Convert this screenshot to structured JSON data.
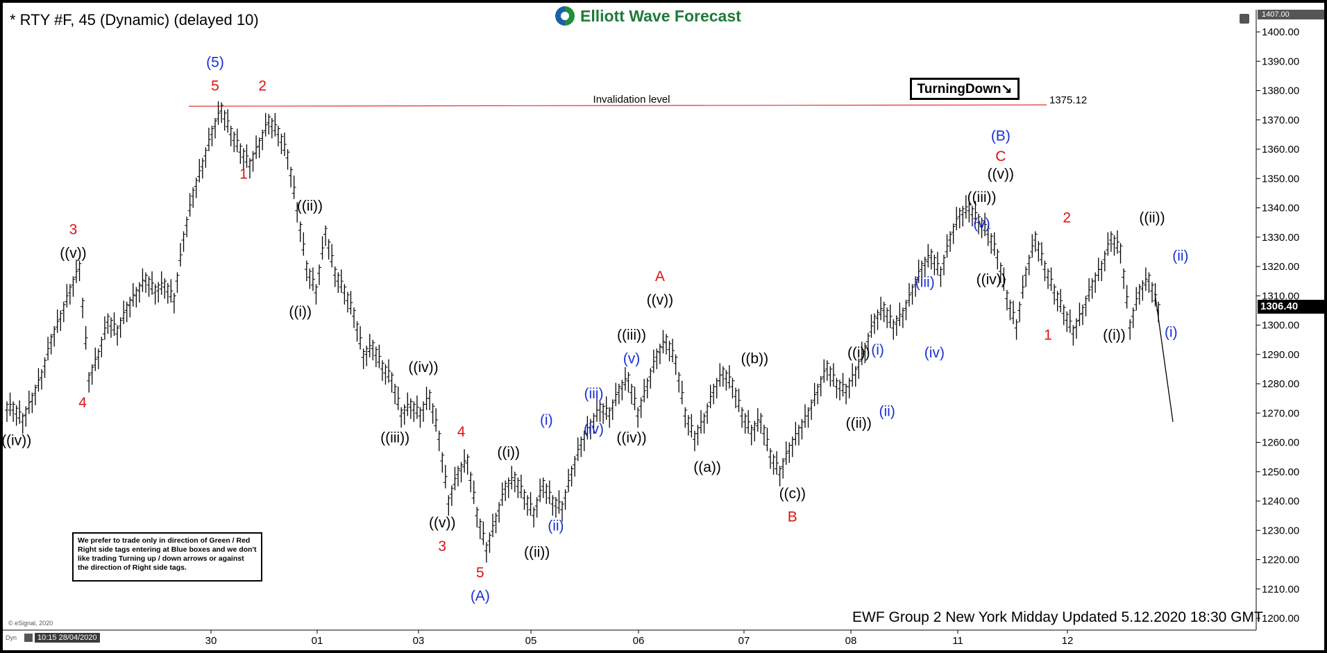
{
  "header": {
    "title": "* RTY #F, 45 (Dynamic) (delayed 10)",
    "logo_text": "Elliott Wave Forecast",
    "turning_label": "TurningDown↘",
    "note": "We prefer to trade only in direction of Green / Red Right side tags entering at Blue boxes and we don't like trading Turning up / down arrows or against the direction of Right side tags.",
    "updated": "EWF Group 2 New York Midday Updated 5.12.2020 18:30 GMT",
    "copyright": "© eSignal, 2020",
    "timestamp": "10:15 28/04/2020",
    "dyn": "Dyn",
    "price_tag": "1306.40",
    "top_tag": "1407.00"
  },
  "chart_data": {
    "type": "bar",
    "title": "* RTY #F, 45 (Dynamic) (delayed 10)",
    "ylim": [
      1196,
      1409
    ],
    "y_ticks": [
      "1400.00",
      "1390.00",
      "1380.00",
      "1370.00",
      "1360.00",
      "1350.00",
      "1340.00",
      "1330.00",
      "1320.00",
      "1310.00",
      "1300.00",
      "1290.00",
      "1280.00",
      "1270.00",
      "1260.00",
      "1250.00",
      "1240.00",
      "1230.00",
      "1220.00",
      "1210.00",
      "1200.00"
    ],
    "x_ticks": [
      "30",
      "01",
      "03",
      "05",
      "06",
      "07",
      "08",
      "11",
      "12"
    ],
    "invalidation": {
      "label": "Invalidation level",
      "value": 1375.12,
      "value_text": "1375.12",
      "color": "#e03030"
    },
    "colors": {
      "red": "#dd1111",
      "blue": "#1a2fd6",
      "black": "#000000"
    },
    "price_path": [
      {
        "t": "28/04 10:15",
        "v": 1272
      },
      {
        "t": "",
        "v": 1268
      },
      {
        "t": "",
        "v": 1275
      },
      {
        "t": "",
        "v": 1283
      },
      {
        "t": "",
        "v": 1295
      },
      {
        "t": "",
        "v": 1303
      },
      {
        "t": "",
        "v": 1312
      },
      {
        "t": "",
        "v": 1320
      },
      {
        "t": "",
        "v": 1282
      },
      {
        "t": "",
        "v": 1290
      },
      {
        "t": "",
        "v": 1302
      },
      {
        "t": "",
        "v": 1298
      },
      {
        "t": "",
        "v": 1306
      },
      {
        "t": "",
        "v": 1311
      },
      {
        "t": "",
        "v": 1316
      },
      {
        "t": "",
        "v": 1312
      },
      {
        "t": "",
        "v": 1314
      },
      {
        "t": "",
        "v": 1309
      },
      {
        "t": "",
        "v": 1330
      },
      {
        "t": "",
        "v": 1345
      },
      {
        "t": "",
        "v": 1355
      },
      {
        "t": "",
        "v": 1366
      },
      {
        "t": "",
        "v": 1374
      },
      {
        "t": "",
        "v": 1366
      },
      {
        "t": "",
        "v": 1360
      },
      {
        "t": "",
        "v": 1355
      },
      {
        "t": "",
        "v": 1362
      },
      {
        "t": "",
        "v": 1370
      },
      {
        "t": "",
        "v": 1366
      },
      {
        "t": "",
        "v": 1358
      },
      {
        "t": "",
        "v": 1340
      },
      {
        "t": "",
        "v": 1320
      },
      {
        "t": "",
        "v": 1312
      },
      {
        "t": "",
        "v": 1332
      },
      {
        "t": "",
        "v": 1318
      },
      {
        "t": "",
        "v": 1312
      },
      {
        "t": "",
        "v": 1304
      },
      {
        "t": "",
        "v": 1290
      },
      {
        "t": "",
        "v": 1293
      },
      {
        "t": "",
        "v": 1286
      },
      {
        "t": "",
        "v": 1282
      },
      {
        "t": "",
        "v": 1270
      },
      {
        "t": "",
        "v": 1273
      },
      {
        "t": "",
        "v": 1270
      },
      {
        "t": "",
        "v": 1276
      },
      {
        "t": "",
        "v": 1262
      },
      {
        "t": "",
        "v": 1240
      },
      {
        "t": "",
        "v": 1250
      },
      {
        "t": "",
        "v": 1254
      },
      {
        "t": "",
        "v": 1236
      },
      {
        "t": "",
        "v": 1224
      },
      {
        "t": "",
        "v": 1234
      },
      {
        "t": "",
        "v": 1245
      },
      {
        "t": "",
        "v": 1248
      },
      {
        "t": "",
        "v": 1242
      },
      {
        "t": "",
        "v": 1236
      },
      {
        "t": "",
        "v": 1246
      },
      {
        "t": "",
        "v": 1240
      },
      {
        "t": "",
        "v": 1238
      },
      {
        "t": "",
        "v": 1250
      },
      {
        "t": "",
        "v": 1260
      },
      {
        "t": "",
        "v": 1266
      },
      {
        "t": "",
        "v": 1272
      },
      {
        "t": "",
        "v": 1270
      },
      {
        "t": "",
        "v": 1278
      },
      {
        "t": "",
        "v": 1282
      },
      {
        "t": "",
        "v": 1270
      },
      {
        "t": "",
        "v": 1280
      },
      {
        "t": "",
        "v": 1290
      },
      {
        "t": "",
        "v": 1295
      },
      {
        "t": "",
        "v": 1288
      },
      {
        "t": "",
        "v": 1270
      },
      {
        "t": "",
        "v": 1262
      },
      {
        "t": "",
        "v": 1268
      },
      {
        "t": "",
        "v": 1278
      },
      {
        "t": "",
        "v": 1284
      },
      {
        "t": "",
        "v": 1280
      },
      {
        "t": "",
        "v": 1270
      },
      {
        "t": "",
        "v": 1264
      },
      {
        "t": "",
        "v": 1268
      },
      {
        "t": "",
        "v": 1256
      },
      {
        "t": "",
        "v": 1250
      },
      {
        "t": "",
        "v": 1258
      },
      {
        "t": "",
        "v": 1264
      },
      {
        "t": "",
        "v": 1270
      },
      {
        "t": "",
        "v": 1278
      },
      {
        "t": "",
        "v": 1286
      },
      {
        "t": "",
        "v": 1280
      },
      {
        "t": "",
        "v": 1278
      },
      {
        "t": "",
        "v": 1284
      },
      {
        "t": "",
        "v": 1292
      },
      {
        "t": "",
        "v": 1302
      },
      {
        "t": "",
        "v": 1306
      },
      {
        "t": "",
        "v": 1300
      },
      {
        "t": "",
        "v": 1304
      },
      {
        "t": "",
        "v": 1312
      },
      {
        "t": "",
        "v": 1320
      },
      {
        "t": "",
        "v": 1324
      },
      {
        "t": "",
        "v": 1318
      },
      {
        "t": "",
        "v": 1330
      },
      {
        "t": "",
        "v": 1338
      },
      {
        "t": "",
        "v": 1340
      },
      {
        "t": "",
        "v": 1336
      },
      {
        "t": "",
        "v": 1332
      },
      {
        "t": "",
        "v": 1324
      },
      {
        "t": "",
        "v": 1310
      },
      {
        "t": "",
        "v": 1300
      },
      {
        "t": "",
        "v": 1318
      },
      {
        "t": "",
        "v": 1330
      },
      {
        "t": "",
        "v": 1320
      },
      {
        "t": "",
        "v": 1312
      },
      {
        "t": "",
        "v": 1305
      },
      {
        "t": "",
        "v": 1298
      },
      {
        "t": "",
        "v": 1305
      },
      {
        "t": "",
        "v": 1314
      },
      {
        "t": "",
        "v": 1320
      },
      {
        "t": "",
        "v": 1330
      },
      {
        "t": "",
        "v": 1326
      },
      {
        "t": "",
        "v": 1300
      },
      {
        "t": "",
        "v": 1312
      },
      {
        "t": "",
        "v": 1316
      },
      {
        "t": "",
        "v": 1306
      }
    ],
    "projection": [
      {
        "v": 1311
      },
      {
        "v": 1267
      }
    ],
    "labels": [
      {
        "text": "(5)",
        "color": "blue",
        "bar": 22,
        "v": 1388
      },
      {
        "text": "5",
        "color": "red",
        "bar": 22,
        "v": 1380
      },
      {
        "text": "2",
        "color": "red",
        "bar": 27,
        "v": 1380
      },
      {
        "text": "1",
        "color": "red",
        "bar": 25,
        "v": 1350
      },
      {
        "text": "((ii))",
        "color": "black",
        "bar": 32,
        "v": 1339
      },
      {
        "text": "((i))",
        "color": "black",
        "bar": 31,
        "v": 1303
      },
      {
        "text": "3",
        "color": "red",
        "bar": 7,
        "v": 1331
      },
      {
        "text": "((v))",
        "color": "black",
        "bar": 7,
        "v": 1323
      },
      {
        "text": "4",
        "color": "red",
        "bar": 8,
        "v": 1272
      },
      {
        "text": "((iv))",
        "color": "black",
        "bar": 1,
        "v": 1259
      },
      {
        "text": "((iv))",
        "color": "black",
        "bar": 44,
        "v": 1284
      },
      {
        "text": "((iii))",
        "color": "black",
        "bar": 41,
        "v": 1260
      },
      {
        "text": "4",
        "color": "red",
        "bar": 48,
        "v": 1262
      },
      {
        "text": "((v))",
        "color": "black",
        "bar": 46,
        "v": 1231
      },
      {
        "text": "3",
        "color": "red",
        "bar": 46,
        "v": 1223
      },
      {
        "text": "5",
        "color": "red",
        "bar": 50,
        "v": 1214
      },
      {
        "text": "(A)",
        "color": "blue",
        "bar": 50,
        "v": 1206
      },
      {
        "text": "((i))",
        "color": "black",
        "bar": 53,
        "v": 1255
      },
      {
        "text": "(i)",
        "color": "blue",
        "bar": 57,
        "v": 1266
      },
      {
        "text": "(ii)",
        "color": "blue",
        "bar": 58,
        "v": 1230
      },
      {
        "text": "((ii))",
        "color": "black",
        "bar": 56,
        "v": 1221
      },
      {
        "text": "(iii)",
        "color": "blue",
        "bar": 62,
        "v": 1275
      },
      {
        "text": "(iv)",
        "color": "blue",
        "bar": 62,
        "v": 1263
      },
      {
        "text": "((iii))",
        "color": "black",
        "bar": 66,
        "v": 1295
      },
      {
        "text": "(v)",
        "color": "blue",
        "bar": 66,
        "v": 1287
      },
      {
        "text": "((iv))",
        "color": "black",
        "bar": 66,
        "v": 1260
      },
      {
        "text": "A",
        "color": "red",
        "bar": 69,
        "v": 1315
      },
      {
        "text": "((v))",
        "color": "black",
        "bar": 69,
        "v": 1307
      },
      {
        "text": "((a))",
        "color": "black",
        "bar": 74,
        "v": 1250
      },
      {
        "text": "((b))",
        "color": "black",
        "bar": 79,
        "v": 1287
      },
      {
        "text": "((c))",
        "color": "black",
        "bar": 83,
        "v": 1241
      },
      {
        "text": "B",
        "color": "red",
        "bar": 83,
        "v": 1233
      },
      {
        "text": "((i))",
        "color": "black",
        "bar": 90,
        "v": 1289
      },
      {
        "text": "(i)",
        "color": "blue",
        "bar": 92,
        "v": 1290
      },
      {
        "text": "((ii))",
        "color": "black",
        "bar": 90,
        "v": 1265
      },
      {
        "text": "(ii)",
        "color": "blue",
        "bar": 93,
        "v": 1269
      },
      {
        "text": "(iii)",
        "color": "blue",
        "bar": 97,
        "v": 1313
      },
      {
        "text": "(iv)",
        "color": "blue",
        "bar": 98,
        "v": 1289
      },
      {
        "text": "((iii))",
        "color": "black",
        "bar": 103,
        "v": 1342
      },
      {
        "text": "(v)",
        "color": "blue",
        "bar": 103,
        "v": 1333
      },
      {
        "text": "((iv))",
        "color": "black",
        "bar": 104,
        "v": 1314
      },
      {
        "text": "((v))",
        "color": "black",
        "bar": 105,
        "v": 1350
      },
      {
        "text": "C",
        "color": "red",
        "bar": 105,
        "v": 1356
      },
      {
        "text": "(B)",
        "color": "blue",
        "bar": 105,
        "v": 1363
      },
      {
        "text": "2",
        "color": "red",
        "bar": 112,
        "v": 1335
      },
      {
        "text": "1",
        "color": "red",
        "bar": 110,
        "v": 1295
      },
      {
        "text": "((ii))",
        "color": "black",
        "bar": 121,
        "v": 1335
      },
      {
        "text": "((i))",
        "color": "black",
        "bar": 117,
        "v": 1295
      },
      {
        "text": "(ii)",
        "color": "blue",
        "bar": 124,
        "v": 1322
      },
      {
        "text": "(i)",
        "color": "blue",
        "bar": 123,
        "v": 1296
      }
    ]
  }
}
